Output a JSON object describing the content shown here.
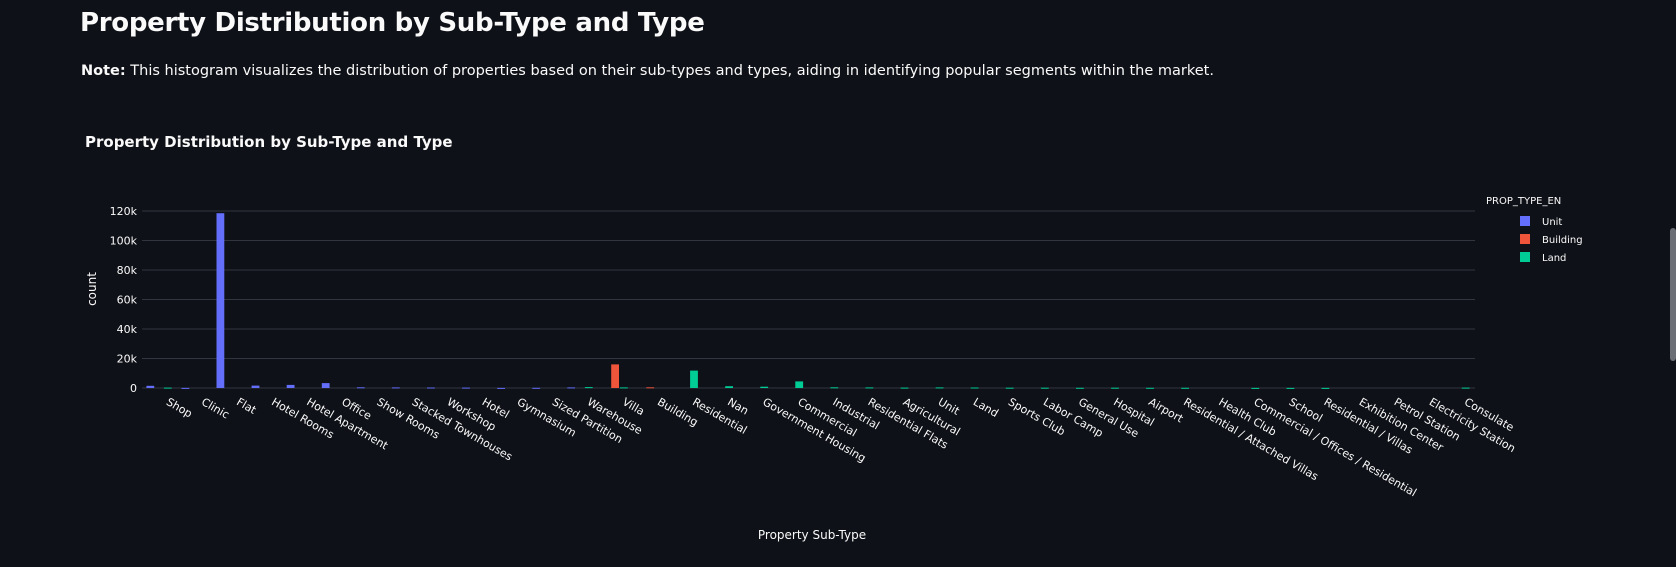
{
  "page": {
    "title": "Property Distribution by Sub-Type and Type",
    "note_label": "Note:",
    "note_text": " This histogram visualizes the distribution of properties based on their sub-types and types, aiding in identifying popular segments within the market."
  },
  "chart_data": {
    "type": "bar",
    "title": "Property Distribution by Sub-Type and Type",
    "xlabel": "Property Sub-Type",
    "ylabel": "count",
    "ylim": [
      0,
      120000
    ],
    "yticks": [
      0,
      20000,
      40000,
      60000,
      80000,
      100000,
      120000
    ],
    "ytick_labels": [
      "0",
      "20k",
      "40k",
      "60k",
      "80k",
      "100k",
      "120k"
    ],
    "grid": true,
    "legend": {
      "title": "PROP_TYPE_EN",
      "placement": "top-right"
    },
    "categories": [
      "Shop",
      "Clinic",
      "Flat",
      "Hotel Rooms",
      "Hotel Apartment",
      "Office",
      "Show Rooms",
      "Stacked Townhouses",
      "Workshop",
      "Hotel",
      "Gymnasium",
      "Sized Partition",
      "Warehouse",
      "Villa",
      "Building",
      "Residential",
      "Nan",
      "Government Housing",
      "Commercial",
      "Industrial",
      "Residential Flats",
      "Agricultural",
      "Unit",
      "Land",
      "Sports Club",
      "Labor Camp",
      "General Use",
      "Hospital",
      "Airport",
      "Residential / Attached Villas",
      "Health Club",
      "Commercial / Offices / Residential",
      "School",
      "Residential / Villas",
      "Exhibition Center",
      "Petrol Station",
      "Electricity Station",
      "Consulate"
    ],
    "series": [
      {
        "name": "Unit",
        "color": "#636efa",
        "values": [
          1500,
          100,
          118500,
          1600,
          2100,
          3300,
          500,
          400,
          350,
          300,
          50,
          150,
          400,
          0,
          0,
          0,
          0,
          0,
          0,
          0,
          0,
          0,
          0,
          0,
          0,
          0,
          0,
          0,
          0,
          0,
          0,
          0,
          0,
          0,
          0,
          0,
          0,
          0
        ]
      },
      {
        "name": "Building",
        "color": "#ef553b",
        "values": [
          0,
          0,
          0,
          0,
          0,
          0,
          0,
          0,
          0,
          0,
          0,
          0,
          0,
          16000,
          500,
          0,
          0,
          0,
          0,
          0,
          0,
          0,
          0,
          0,
          0,
          0,
          0,
          0,
          0,
          0,
          0,
          0,
          0,
          0,
          0,
          0,
          0,
          0
        ]
      },
      {
        "name": "Land",
        "color": "#00cc96",
        "values": [
          300,
          0,
          0,
          0,
          0,
          0,
          0,
          0,
          0,
          0,
          0,
          0,
          600,
          400,
          0,
          11800,
          1200,
          900,
          4500,
          500,
          400,
          300,
          400,
          350,
          200,
          200,
          150,
          200,
          150,
          150,
          0,
          100,
          100,
          100,
          0,
          0,
          0,
          300
        ]
      }
    ]
  }
}
